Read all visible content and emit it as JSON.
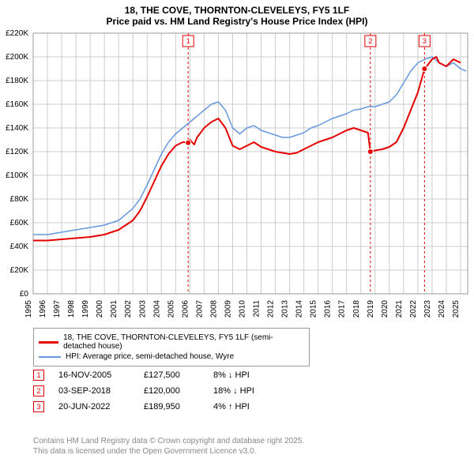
{
  "title_line1": "18, THE COVE, THORNTON-CLEVELEYS, FY5 1LF",
  "title_line2": "Price paid vs. HM Land Registry's House Price Index (HPI)",
  "chart": {
    "type": "line",
    "background_color": "#ffffff",
    "grid_color": "#cccccc",
    "axis_color": "#000000",
    "xlim": [
      1995,
      2025.5
    ],
    "ylim": [
      0,
      220000
    ],
    "ytick_step": 20000,
    "ytick_labels": [
      "£0",
      "£20K",
      "£40K",
      "£60K",
      "£80K",
      "£100K",
      "£120K",
      "£140K",
      "£160K",
      "£180K",
      "£200K",
      "£220K"
    ],
    "xtick_years": [
      1995,
      1996,
      1997,
      1998,
      1999,
      2000,
      2001,
      2002,
      2003,
      2004,
      2005,
      2006,
      2007,
      2008,
      2009,
      2010,
      2011,
      2012,
      2013,
      2014,
      2015,
      2016,
      2017,
      2018,
      2019,
      2020,
      2021,
      2022,
      2023,
      2024,
      2025
    ],
    "series": [
      {
        "name": "price_paid",
        "label": "18, THE COVE, THORNTON-CLEVELEYS, FY5 1LF (semi-detached house)",
        "color": "#e60000",
        "line_width": 2,
        "data": [
          [
            1995.0,
            45000
          ],
          [
            1996.0,
            45000
          ],
          [
            1997.0,
            46000
          ],
          [
            1998.0,
            47000
          ],
          [
            1999.0,
            48000
          ],
          [
            2000.0,
            50000
          ],
          [
            2001.0,
            54000
          ],
          [
            2002.0,
            62000
          ],
          [
            2002.5,
            70000
          ],
          [
            2003.0,
            82000
          ],
          [
            2003.5,
            95000
          ],
          [
            2004.0,
            108000
          ],
          [
            2004.5,
            118000
          ],
          [
            2005.0,
            125000
          ],
          [
            2005.5,
            128000
          ],
          [
            2005.88,
            127500
          ],
          [
            2006.0,
            130000
          ],
          [
            2006.3,
            126000
          ],
          [
            2006.5,
            132000
          ],
          [
            2007.0,
            140000
          ],
          [
            2007.5,
            145000
          ],
          [
            2008.0,
            148000
          ],
          [
            2008.5,
            140000
          ],
          [
            2009.0,
            125000
          ],
          [
            2009.5,
            122000
          ],
          [
            2010.0,
            125000
          ],
          [
            2010.5,
            128000
          ],
          [
            2011.0,
            124000
          ],
          [
            2011.5,
            122000
          ],
          [
            2012.0,
            120000
          ],
          [
            2012.5,
            119000
          ],
          [
            2013.0,
            118000
          ],
          [
            2013.5,
            119000
          ],
          [
            2014.0,
            122000
          ],
          [
            2014.5,
            125000
          ],
          [
            2015.0,
            128000
          ],
          [
            2015.5,
            130000
          ],
          [
            2016.0,
            132000
          ],
          [
            2016.5,
            135000
          ],
          [
            2017.0,
            138000
          ],
          [
            2017.5,
            140000
          ],
          [
            2018.0,
            138000
          ],
          [
            2018.5,
            136000
          ],
          [
            2018.67,
            120000
          ],
          [
            2019.0,
            121000
          ],
          [
            2019.5,
            122000
          ],
          [
            2020.0,
            124000
          ],
          [
            2020.5,
            128000
          ],
          [
            2021.0,
            140000
          ],
          [
            2021.5,
            155000
          ],
          [
            2022.0,
            170000
          ],
          [
            2022.47,
            189950
          ],
          [
            2022.5,
            190000
          ],
          [
            2023.0,
            198000
          ],
          [
            2023.3,
            200000
          ],
          [
            2023.5,
            195000
          ],
          [
            2024.0,
            192000
          ],
          [
            2024.5,
            198000
          ],
          [
            2025.0,
            195000
          ]
        ]
      },
      {
        "name": "hpi",
        "label": "HPI: Average price, semi-detached house, Wyre",
        "color": "#6699dd",
        "line_width": 1.5,
        "data": [
          [
            1995.0,
            50000
          ],
          [
            1996.0,
            50000
          ],
          [
            1997.0,
            52000
          ],
          [
            1998.0,
            54000
          ],
          [
            1999.0,
            56000
          ],
          [
            2000.0,
            58000
          ],
          [
            2001.0,
            62000
          ],
          [
            2002.0,
            72000
          ],
          [
            2002.5,
            80000
          ],
          [
            2003.0,
            92000
          ],
          [
            2003.5,
            105000
          ],
          [
            2004.0,
            118000
          ],
          [
            2004.5,
            128000
          ],
          [
            2005.0,
            135000
          ],
          [
            2005.5,
            140000
          ],
          [
            2006.0,
            145000
          ],
          [
            2006.5,
            150000
          ],
          [
            2007.0,
            155000
          ],
          [
            2007.5,
            160000
          ],
          [
            2008.0,
            162000
          ],
          [
            2008.5,
            155000
          ],
          [
            2009.0,
            140000
          ],
          [
            2009.5,
            135000
          ],
          [
            2010.0,
            140000
          ],
          [
            2010.5,
            142000
          ],
          [
            2011.0,
            138000
          ],
          [
            2011.5,
            136000
          ],
          [
            2012.0,
            134000
          ],
          [
            2012.5,
            132000
          ],
          [
            2013.0,
            132000
          ],
          [
            2013.5,
            134000
          ],
          [
            2014.0,
            136000
          ],
          [
            2014.5,
            140000
          ],
          [
            2015.0,
            142000
          ],
          [
            2015.5,
            145000
          ],
          [
            2016.0,
            148000
          ],
          [
            2016.5,
            150000
          ],
          [
            2017.0,
            152000
          ],
          [
            2017.5,
            155000
          ],
          [
            2018.0,
            156000
          ],
          [
            2018.5,
            158000
          ],
          [
            2019.0,
            158000
          ],
          [
            2019.5,
            160000
          ],
          [
            2020.0,
            162000
          ],
          [
            2020.5,
            168000
          ],
          [
            2021.0,
            178000
          ],
          [
            2021.5,
            188000
          ],
          [
            2022.0,
            195000
          ],
          [
            2022.5,
            198000
          ],
          [
            2023.0,
            200000
          ],
          [
            2023.5,
            195000
          ],
          [
            2024.0,
            192000
          ],
          [
            2024.5,
            195000
          ],
          [
            2025.0,
            190000
          ],
          [
            2025.4,
            188000
          ]
        ]
      }
    ],
    "markers": [
      {
        "num": "1",
        "x": 2005.88,
        "y_top": 0,
        "color": "#e60000"
      },
      {
        "num": "2",
        "x": 2018.67,
        "y_top": 0,
        "color": "#e60000"
      },
      {
        "num": "3",
        "x": 2022.47,
        "y_top": 0,
        "color": "#e60000"
      }
    ]
  },
  "legend": {
    "items": [
      {
        "color": "#e60000",
        "thickness": 3,
        "label": "18, THE COVE, THORNTON-CLEVELEYS, FY5 1LF (semi-detached house)"
      },
      {
        "color": "#6699dd",
        "thickness": 2,
        "label": "HPI: Average price, semi-detached house, Wyre"
      }
    ]
  },
  "sales": [
    {
      "num": "1",
      "color": "#e60000",
      "date": "16-NOV-2005",
      "price": "£127,500",
      "hpi": "8% ↓ HPI"
    },
    {
      "num": "2",
      "color": "#e60000",
      "date": "03-SEP-2018",
      "price": "£120,000",
      "hpi": "18% ↓ HPI"
    },
    {
      "num": "3",
      "color": "#e60000",
      "date": "20-JUN-2022",
      "price": "£189,950",
      "hpi": "4% ↑ HPI"
    }
  ],
  "footer_line1": "Contains HM Land Registry data © Crown copyright and database right 2025.",
  "footer_line2": "This data is licensed under the Open Government Licence v3.0."
}
